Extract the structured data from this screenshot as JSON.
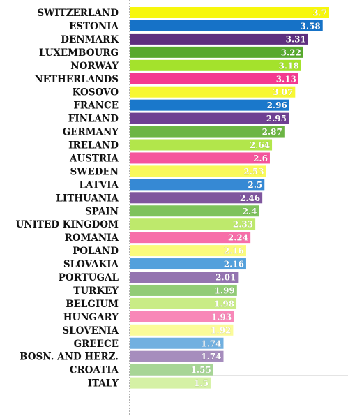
{
  "chart_data": {
    "type": "bar",
    "orientation": "horizontal",
    "categories": [
      "SWITZERLAND",
      "ESTONIA",
      "DENMARK",
      "LUXEMBOURG",
      "NORWAY",
      "NETHERLANDS",
      "KOSOVO",
      "FRANCE",
      "FINLAND",
      "GERMANY",
      "IRELAND",
      "AUSTRIA",
      "SWEDEN",
      "LATVIA",
      "LITHUANIA",
      "SPAIN",
      "UNITED KINGDOM",
      "ROMANIA",
      "POLAND",
      "SLOVAKIA",
      "PORTUGAL",
      "TURKEY",
      "BELGIUM",
      "HUNGARY",
      "SLOVENIA",
      "GREECE",
      "BOSN. AND HERZ.",
      "CROATIA",
      "ITALY"
    ],
    "values": [
      3.7,
      3.58,
      3.31,
      3.22,
      3.18,
      3.13,
      3.07,
      2.96,
      2.95,
      2.87,
      2.64,
      2.6,
      2.53,
      2.5,
      2.46,
      2.4,
      2.33,
      2.24,
      2.16,
      2.16,
      2.01,
      1.99,
      1.98,
      1.93,
      1.92,
      1.74,
      1.74,
      1.55,
      1.5
    ],
    "value_labels": [
      "3.7",
      "3.58",
      "3.31",
      "3.22",
      "3.18",
      "3.13",
      "3.07",
      "2.96",
      "2.95",
      "2.87",
      "2.64",
      "2.6",
      "2.53",
      "2.5",
      "2.46",
      "2.4",
      "2.33",
      "2.24",
      "2.16",
      "2.16",
      "2.01",
      "1.99",
      "1.98",
      "1.93",
      "1.92",
      "1.74",
      "1.74",
      "1.55",
      "1.5"
    ],
    "xlim": [
      0,
      3.7
    ],
    "colors": [
      "#f7f70c",
      "#1672c7",
      "#5e2f7f",
      "#57a92d",
      "#a4e22c",
      "#f43a90",
      "#f7f733",
      "#1a78cb",
      "#6e4092",
      "#6cb544",
      "#b2e64b",
      "#f5559c",
      "#f9f95a",
      "#3689d4",
      "#7f569e",
      "#7ec25c",
      "#bee96c",
      "#f76ea9",
      "#fbfb7c",
      "#53a0dc",
      "#9474b0",
      "#92cb76",
      "#c9ec86",
      "#f887b8",
      "#fbfb99",
      "#71b0e0",
      "#a68dbd",
      "#a7d596",
      "#d5f1a5"
    ],
    "title": "",
    "xlabel": "",
    "ylabel": "",
    "grid": false
  }
}
